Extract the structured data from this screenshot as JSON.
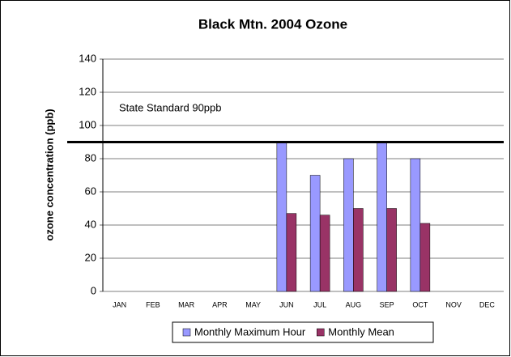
{
  "chart_data": {
    "type": "bar",
    "title": "Black Mtn. 2004 Ozone",
    "y_label": "ozone concentration (ppb)",
    "categories": [
      "JAN",
      "FEB",
      "MAR",
      "APR",
      "MAY",
      "JUN",
      "JUL",
      "AUG",
      "SEP",
      "OCT",
      "NOV",
      "DEC"
    ],
    "series": [
      {
        "name": "Monthly Maximum Hour",
        "color": "#9999ff",
        "values": [
          null,
          null,
          null,
          null,
          null,
          90,
          70,
          80,
          90,
          80,
          null,
          null
        ]
      },
      {
        "name": "Monthly Mean",
        "color": "#993366",
        "values": [
          null,
          null,
          null,
          null,
          null,
          47,
          46,
          50,
          50,
          41,
          null,
          null
        ]
      }
    ],
    "threshold": {
      "value": 90,
      "label": "State Standard 90ppb"
    },
    "ylim": [
      0,
      140
    ],
    "yticks": [
      0,
      20,
      40,
      60,
      80,
      100,
      120,
      140
    ],
    "grid": true,
    "legend": "bottom"
  }
}
